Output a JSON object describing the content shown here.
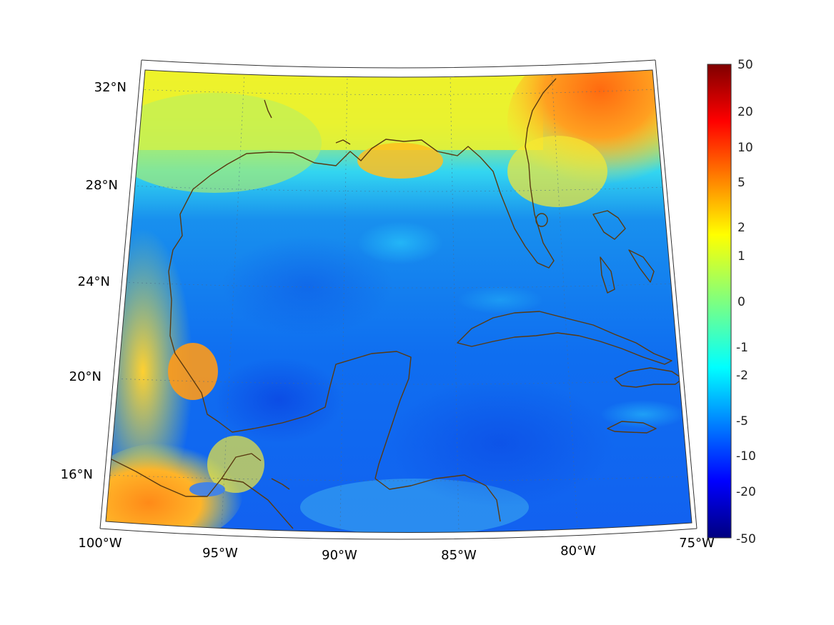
{
  "map": {
    "region": "Gulf of Mexico / Caribbean",
    "lat_labels": [
      "32°N",
      "28°N",
      "24°N",
      "20°N",
      "16°N"
    ],
    "lon_labels": [
      "100°W",
      "95°W",
      "90°W",
      "85°W",
      "80°W",
      "75°W"
    ],
    "coastline_color": "#5a3a10",
    "frame_color": "#333333",
    "grid_style": "dotted"
  },
  "colorbar": {
    "colormap": "jet",
    "tick_labels": [
      "50",
      "20",
      "10",
      "5",
      "2",
      "1",
      "0",
      "-1",
      "-2",
      "-5",
      "-10",
      "-20",
      "-50"
    ],
    "min": -50,
    "max": 50
  }
}
